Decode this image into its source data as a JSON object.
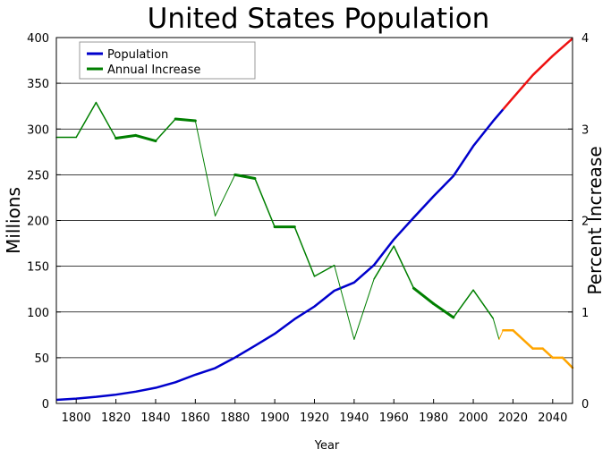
{
  "chart_data": {
    "type": "line",
    "title": "United States Population",
    "xlabel": "Year",
    "ylabel_left": "Millions",
    "ylabel_right": "Percent Increase",
    "xlim": [
      1790,
      2050
    ],
    "ylim_left": [
      0,
      400
    ],
    "ylim_right": [
      0,
      4
    ],
    "x_ticks": [
      1800,
      1820,
      1840,
      1860,
      1880,
      1900,
      1920,
      1940,
      1960,
      1980,
      2000,
      2020,
      2040
    ],
    "y_ticks_left": [
      0,
      50,
      100,
      150,
      200,
      250,
      300,
      350,
      400
    ],
    "y_ticks_right": [
      0,
      1,
      2,
      3,
      4
    ],
    "grid": "horizontal",
    "legend": {
      "position": "top-left",
      "entries": [
        {
          "label": "Population",
          "color": "#0000cc"
        },
        {
          "label": "Annual Increase",
          "color": "#007f00"
        }
      ]
    },
    "series": [
      {
        "name": "Population",
        "axis": "left",
        "color": "#0000cc",
        "x": [
          1790,
          1800,
          1810,
          1820,
          1830,
          1840,
          1850,
          1860,
          1870,
          1880,
          1890,
          1900,
          1910,
          1920,
          1930,
          1940,
          1950,
          1960,
          1970,
          1980,
          1990,
          2000,
          2010,
          2015
        ],
        "y": [
          3.9,
          5.3,
          7.2,
          9.6,
          12.9,
          17.1,
          23.2,
          31.4,
          38.6,
          50.2,
          63.0,
          76.2,
          92.2,
          106.0,
          123.2,
          132.2,
          151.3,
          179.3,
          203.2,
          226.5,
          248.7,
          281.4,
          308.7,
          321.4
        ]
      },
      {
        "name": "Population (projected)",
        "axis": "left",
        "color": "#ee1111",
        "x": [
          2015,
          2020,
          2030,
          2040,
          2050
        ],
        "y": [
          321.4,
          334,
          359,
          380,
          399
        ]
      },
      {
        "name": "Annual Increase",
        "axis": "right",
        "color": "#007f00",
        "segments": [
          {
            "x": [
              1790,
              1800
            ],
            "y": [
              2.91,
              2.91
            ],
            "width": 1.5
          },
          {
            "x": [
              1800,
              1810
            ],
            "y": [
              2.91,
              3.29
            ],
            "width": 1.5
          },
          {
            "x": [
              1810,
              1820
            ],
            "y": [
              3.29,
              2.9
            ],
            "width": 1.5
          },
          {
            "x": [
              1820,
              1830
            ],
            "y": [
              2.9,
              2.93
            ],
            "width": 3
          },
          {
            "x": [
              1830,
              1840
            ],
            "y": [
              2.93,
              2.87
            ],
            "width": 3
          },
          {
            "x": [
              1840,
              1850
            ],
            "y": [
              2.87,
              3.11
            ],
            "width": 1.5
          },
          {
            "x": [
              1850,
              1860
            ],
            "y": [
              3.11,
              3.09
            ],
            "width": 3
          },
          {
            "x": [
              1860,
              1870
            ],
            "y": [
              3.09,
              2.05
            ],
            "width": 1
          },
          {
            "x": [
              1870,
              1880
            ],
            "y": [
              2.05,
              2.5
            ],
            "width": 1
          },
          {
            "x": [
              1880,
              1890
            ],
            "y": [
              2.5,
              2.46
            ],
            "width": 3
          },
          {
            "x": [
              1890,
              1900
            ],
            "y": [
              2.46,
              1.93
            ],
            "width": 1.5
          },
          {
            "x": [
              1900,
              1910
            ],
            "y": [
              1.93,
              1.93
            ],
            "width": 3
          },
          {
            "x": [
              1910,
              1920
            ],
            "y": [
              1.93,
              1.39
            ],
            "width": 1.5
          },
          {
            "x": [
              1920,
              1930
            ],
            "y": [
              1.39,
              1.51
            ],
            "width": 1.5
          },
          {
            "x": [
              1930,
              1940
            ],
            "y": [
              1.51,
              0.7
            ],
            "width": 1
          },
          {
            "x": [
              1940,
              1950
            ],
            "y": [
              0.7,
              1.36
            ],
            "width": 1
          },
          {
            "x": [
              1950,
              1960
            ],
            "y": [
              1.36,
              1.72
            ],
            "width": 1.5
          },
          {
            "x": [
              1960,
              1970
            ],
            "y": [
              1.72,
              1.26
            ],
            "width": 1.5
          },
          {
            "x": [
              1970,
              1980
            ],
            "y": [
              1.26,
              1.09
            ],
            "width": 3
          },
          {
            "x": [
              1980,
              1990
            ],
            "y": [
              1.09,
              0.94
            ],
            "width": 3
          },
          {
            "x": [
              1990,
              2000
            ],
            "y": [
              0.94,
              1.24
            ],
            "width": 1.5
          },
          {
            "x": [
              2000,
              2010
            ],
            "y": [
              1.24,
              0.93
            ],
            "width": 1.5
          },
          {
            "x": [
              2010,
              2013
            ],
            "y": [
              0.93,
              0.7
            ],
            "width": 1
          }
        ]
      },
      {
        "name": "Annual Increase (projected)",
        "axis": "right",
        "color": "#ffa500",
        "segments": [
          {
            "x": [
              2013,
              2015
            ],
            "y": [
              0.7,
              0.8
            ],
            "width": 1
          },
          {
            "x": [
              2015,
              2020
            ],
            "y": [
              0.8,
              0.8
            ],
            "width": 2.5
          },
          {
            "x": [
              2020,
              2030
            ],
            "y": [
              0.8,
              0.6
            ],
            "width": 2.5
          },
          {
            "x": [
              2030,
              2035
            ],
            "y": [
              0.6,
              0.6
            ],
            "width": 2.5
          },
          {
            "x": [
              2035,
              2040
            ],
            "y": [
              0.6,
              0.5
            ],
            "width": 2.5
          },
          {
            "x": [
              2040,
              2045
            ],
            "y": [
              0.5,
              0.5
            ],
            "width": 2.5
          },
          {
            "x": [
              2045,
              2050
            ],
            "y": [
              0.5,
              0.39
            ],
            "width": 2.5
          }
        ]
      }
    ]
  }
}
